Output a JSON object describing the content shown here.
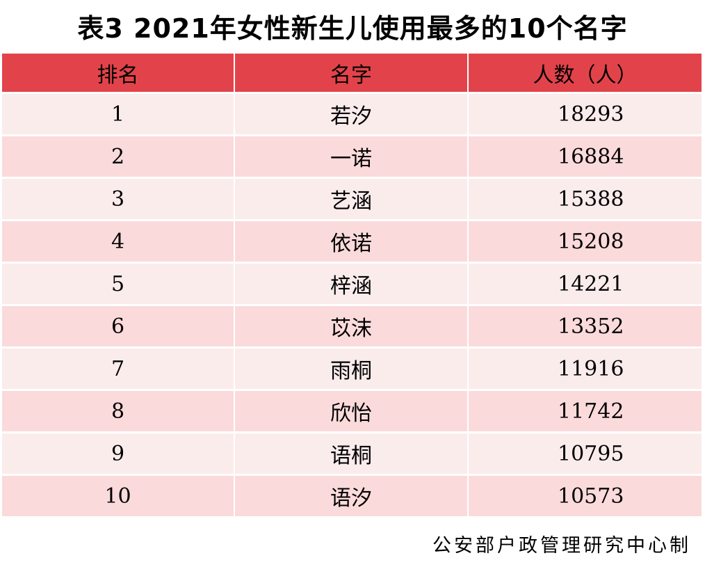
{
  "title": "表3  2021年女性新生儿使用最多的10个名字",
  "table": {
    "headers": [
      "排名",
      "名字",
      "人数（人）"
    ],
    "rows": [
      {
        "rank": "1",
        "name": "若汐",
        "count": "18293"
      },
      {
        "rank": "2",
        "name": "一诺",
        "count": "16884"
      },
      {
        "rank": "3",
        "name": "艺涵",
        "count": "15388"
      },
      {
        "rank": "4",
        "name": "依诺",
        "count": "15208"
      },
      {
        "rank": "5",
        "name": "梓涵",
        "count": "14221"
      },
      {
        "rank": "6",
        "name": "苡沫",
        "count": "13352"
      },
      {
        "rank": "7",
        "name": "雨桐",
        "count": "11916"
      },
      {
        "rank": "8",
        "name": "欣怡",
        "count": "11742"
      },
      {
        "rank": "9",
        "name": "语桐",
        "count": "10795"
      },
      {
        "rank": "10",
        "name": "语汐",
        "count": "10573"
      }
    ]
  },
  "footer": "公安部户政管理研究中心制",
  "colors": {
    "header_bg": "#e2434a",
    "row_light": "#fbecec",
    "row_pink": "#fbdadb"
  }
}
